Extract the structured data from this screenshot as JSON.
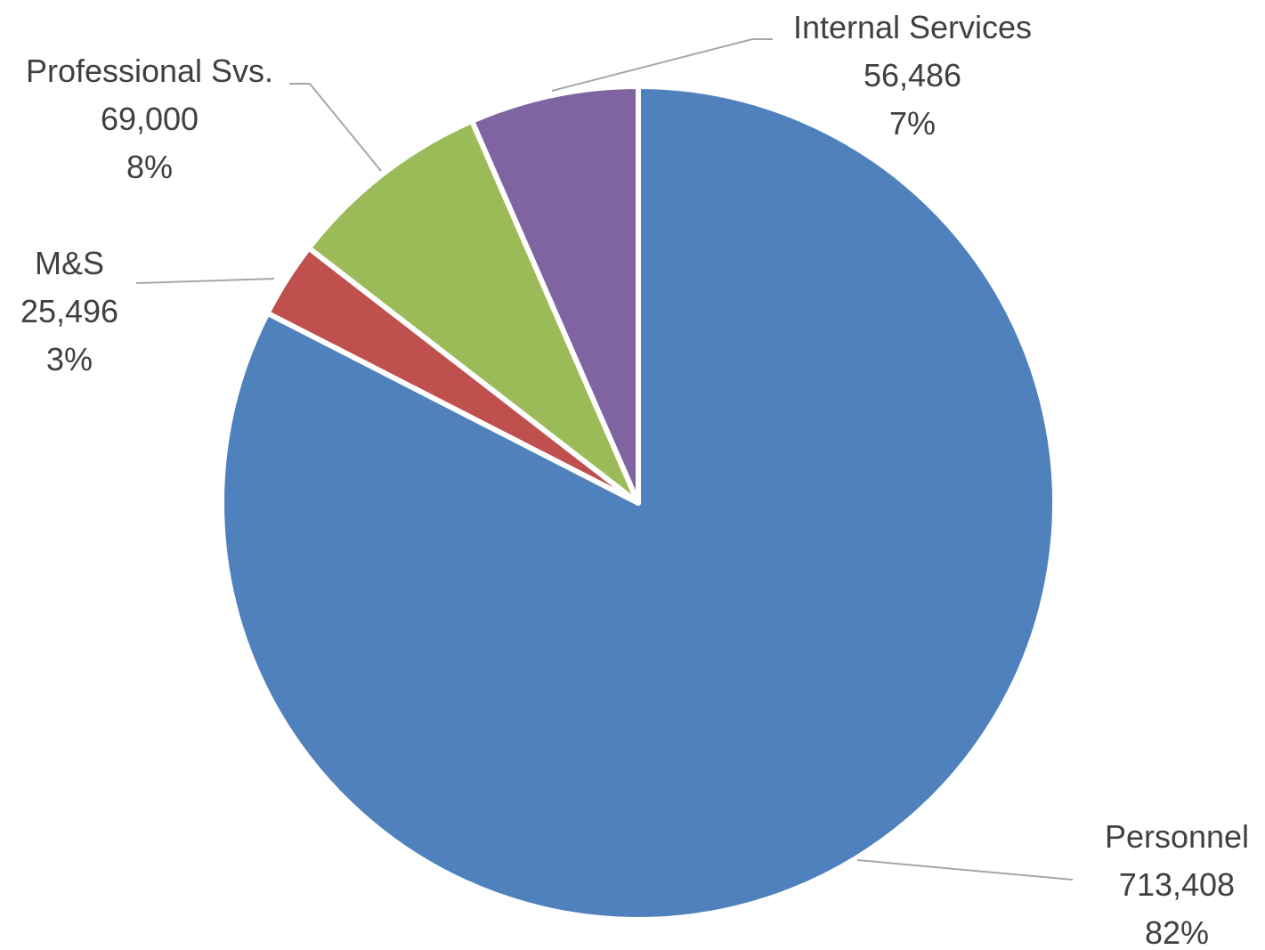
{
  "chart_data": {
    "type": "pie",
    "title": "",
    "slices": [
      {
        "name": "Personnel",
        "value": 713408,
        "value_label": "713,408",
        "percent_label": "82%",
        "color": "#4f81bd"
      },
      {
        "name": "M&S",
        "value": 25496,
        "value_label": "25,496",
        "percent_label": "3%",
        "color": "#c0504d"
      },
      {
        "name": "Professional Svs.",
        "value": 69000,
        "value_label": "69,000",
        "percent_label": "8%",
        "color": "#9bbb59"
      },
      {
        "name": "Internal Services",
        "value": 56486,
        "value_label": "56,486",
        "percent_label": "7%",
        "color": "#8064a2"
      }
    ],
    "start_angle_deg": 0,
    "direction": "clockwise",
    "legend": "none",
    "data_labels": "outside with leader lines"
  }
}
